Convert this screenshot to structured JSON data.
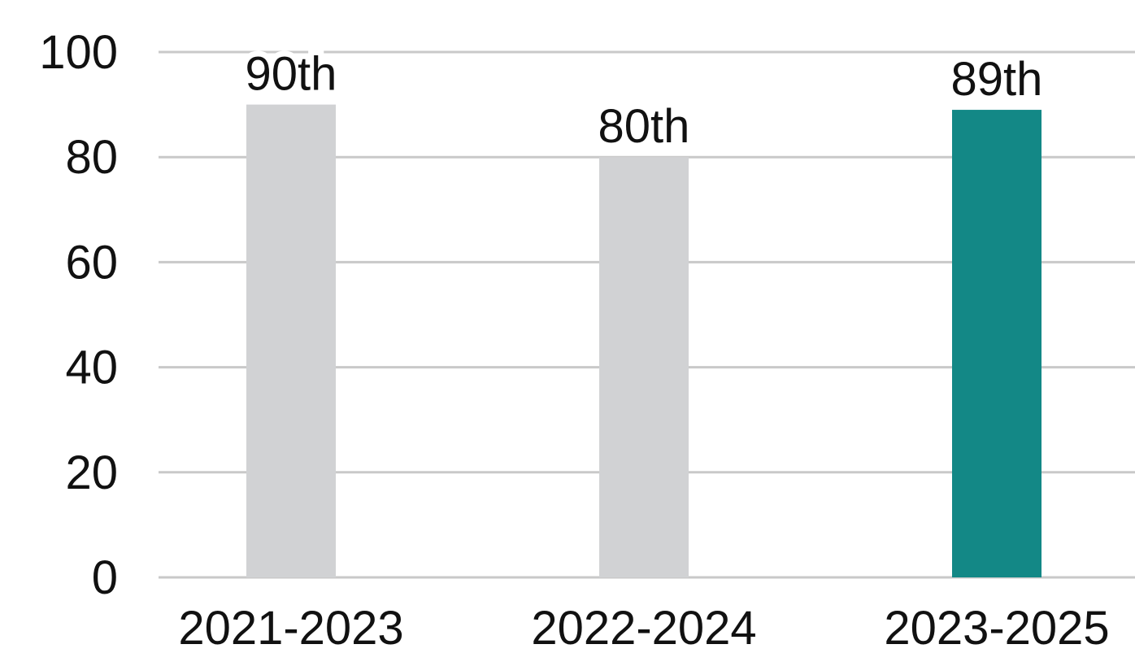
{
  "chart_data": {
    "type": "bar",
    "categories": [
      "2021-2023",
      "2022-2024",
      "2023-2025"
    ],
    "values": [
      90,
      80,
      89
    ],
    "value_labels": [
      "90th",
      "80th",
      "89th"
    ],
    "colors": [
      "#d1d2d4",
      "#d1d2d4",
      "#138886"
    ],
    "ylim": [
      0,
      100
    ],
    "yticks": [
      0,
      20,
      40,
      60,
      80,
      100
    ],
    "grid": true
  }
}
